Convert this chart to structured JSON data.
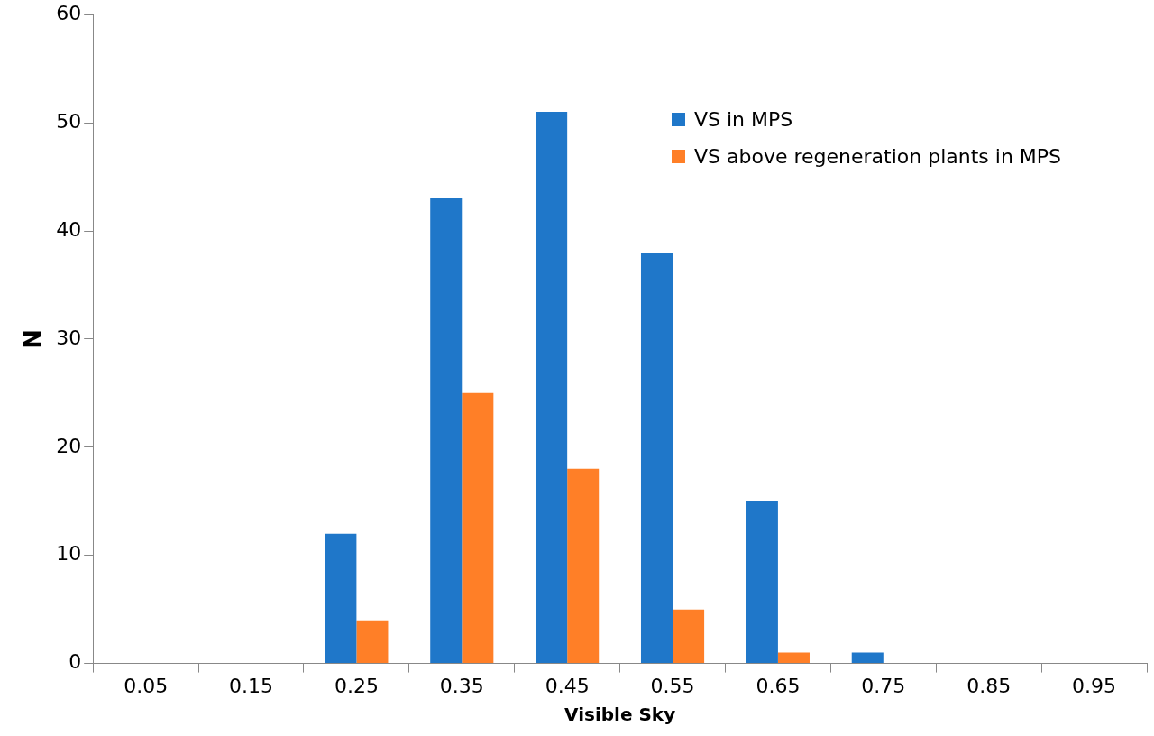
{
  "chart_data": {
    "type": "bar",
    "xlabel": "Visible Sky",
    "ylabel": "N",
    "categories": [
      "0.05",
      "0.15",
      "0.25",
      "0.35",
      "0.45",
      "0.55",
      "0.65",
      "0.75",
      "0.85",
      "0.95"
    ],
    "series": [
      {
        "name": "VS in MPS",
        "color": "#1f77c9",
        "values": [
          0,
          0,
          12,
          43,
          51,
          38,
          15,
          1,
          0,
          0
        ]
      },
      {
        "name": "VS above regeneration plants in MPS",
        "color": "#ff7f27",
        "values": [
          0,
          0,
          4,
          25,
          18,
          5,
          1,
          0,
          0,
          0
        ]
      }
    ],
    "ylim": [
      0,
      60
    ],
    "yticks": [
      0,
      10,
      20,
      30,
      40,
      50,
      60
    ],
    "grid": false,
    "legend": "top right"
  }
}
